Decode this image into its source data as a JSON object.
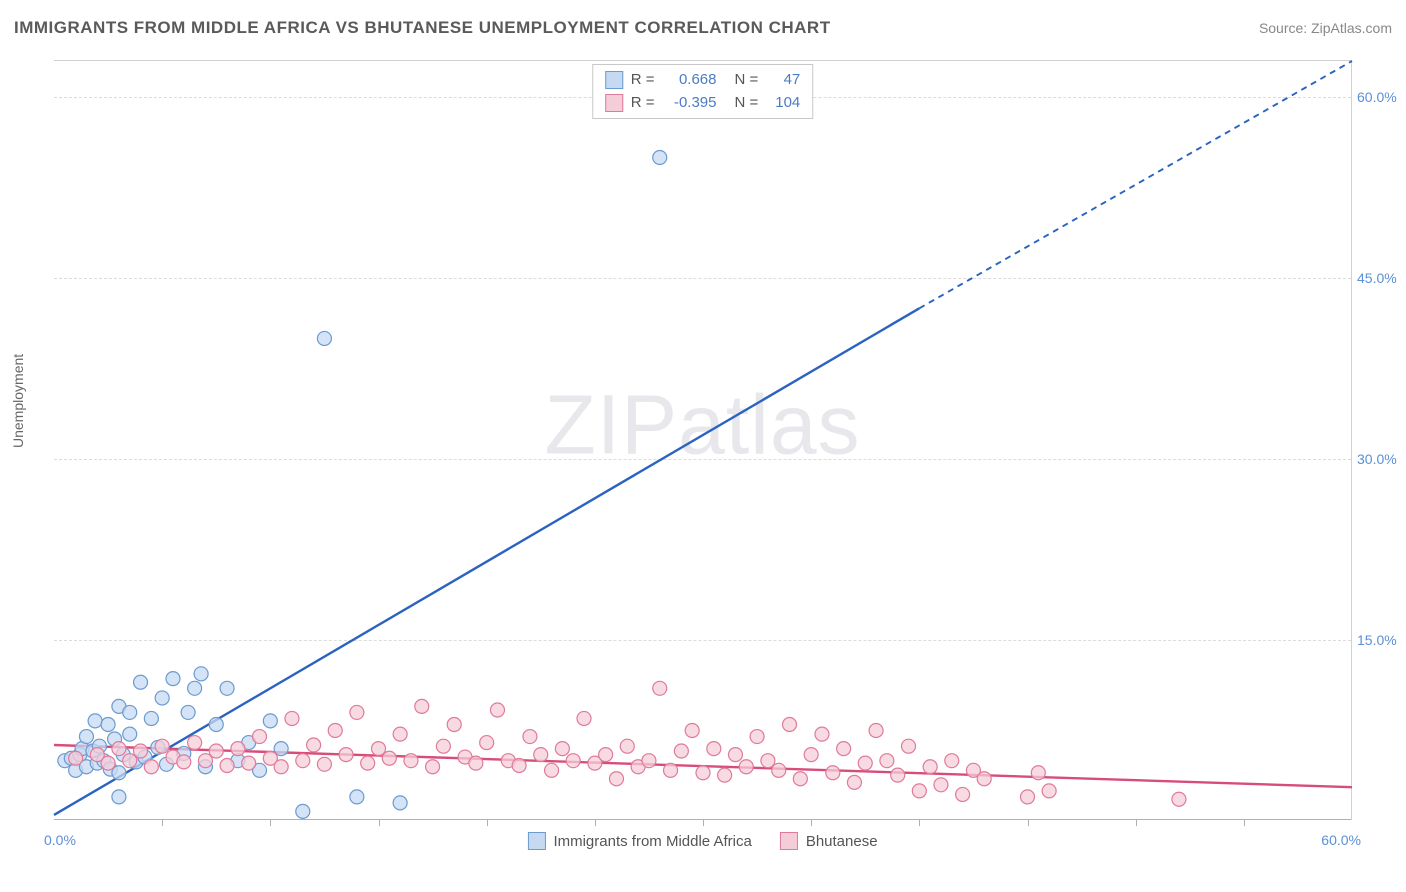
{
  "title": "IMMIGRANTS FROM MIDDLE AFRICA VS BHUTANESE UNEMPLOYMENT CORRELATION CHART",
  "source": "Source: ZipAtlas.com",
  "watermark": {
    "part1": "ZIP",
    "part2": "atlas"
  },
  "y_axis_title": "Unemployment",
  "chart": {
    "type": "scatter",
    "xlim": [
      0,
      60
    ],
    "ylim": [
      0,
      63
    ],
    "x_min_label": "0.0%",
    "x_max_label": "60.0%",
    "y_ticks": [
      15,
      30,
      45,
      60
    ],
    "y_tick_labels": [
      "15.0%",
      "30.0%",
      "45.0%",
      "60.0%"
    ],
    "x_tick_step": 5,
    "background": "#ffffff",
    "grid_color": "#dcdcdc",
    "marker_radius": 7,
    "marker_stroke_width": 1.2,
    "series": [
      {
        "name": "Immigrants from Middle Africa",
        "fill": "#c5d9f1",
        "stroke": "#6b9bd1",
        "trend_color": "#2b63c0",
        "trend_width": 2.4,
        "trend": {
          "x1": 0,
          "y1": 0.5,
          "x2": 40,
          "y2": 42.5,
          "dash_after_x": 40,
          "x2_ext": 60,
          "y2_ext": 63
        },
        "points": [
          [
            0.5,
            5.0
          ],
          [
            0.8,
            5.2
          ],
          [
            1.0,
            4.2
          ],
          [
            1.2,
            5.5
          ],
          [
            1.3,
            6.0
          ],
          [
            1.5,
            7.0
          ],
          [
            1.5,
            4.5
          ],
          [
            1.8,
            5.8
          ],
          [
            1.9,
            8.3
          ],
          [
            2.0,
            4.8
          ],
          [
            2.1,
            6.2
          ],
          [
            2.3,
            5.0
          ],
          [
            2.5,
            8.0
          ],
          [
            2.6,
            4.3
          ],
          [
            2.8,
            6.8
          ],
          [
            3.0,
            9.5
          ],
          [
            3.0,
            4.0
          ],
          [
            3.2,
            5.5
          ],
          [
            3.5,
            7.2
          ],
          [
            3.5,
            9.0
          ],
          [
            3.8,
            4.9
          ],
          [
            4.0,
            11.5
          ],
          [
            4.2,
            5.3
          ],
          [
            4.5,
            8.5
          ],
          [
            4.8,
            6.1
          ],
          [
            5.0,
            10.2
          ],
          [
            5.2,
            4.7
          ],
          [
            5.5,
            11.8
          ],
          [
            6.0,
            5.6
          ],
          [
            6.2,
            9.0
          ],
          [
            6.5,
            11.0
          ],
          [
            6.8,
            12.2
          ],
          [
            7.0,
            4.5
          ],
          [
            7.5,
            8.0
          ],
          [
            8.0,
            11.0
          ],
          [
            8.5,
            5.0
          ],
          [
            9.0,
            6.5
          ],
          [
            9.5,
            4.2
          ],
          [
            10.0,
            8.3
          ],
          [
            10.5,
            6.0
          ],
          [
            11.5,
            0.8
          ],
          [
            3.0,
            2.0
          ],
          [
            14.0,
            2.0
          ],
          [
            16.0,
            1.5
          ],
          [
            12.5,
            40.0
          ],
          [
            28.0,
            55.0
          ]
        ]
      },
      {
        "name": "Bhutanese",
        "fill": "#f5cdd9",
        "stroke": "#e07a9a",
        "trend_color": "#d84c7a",
        "trend_width": 2.4,
        "trend": {
          "x1": 0,
          "y1": 6.3,
          "x2": 60,
          "y2": 2.8
        },
        "points": [
          [
            1.0,
            5.2
          ],
          [
            2.0,
            5.5
          ],
          [
            2.5,
            4.8
          ],
          [
            3.0,
            6.0
          ],
          [
            3.5,
            5.0
          ],
          [
            4.0,
            5.8
          ],
          [
            4.5,
            4.5
          ],
          [
            5.0,
            6.2
          ],
          [
            5.5,
            5.3
          ],
          [
            6.0,
            4.9
          ],
          [
            6.5,
            6.5
          ],
          [
            7.0,
            5.0
          ],
          [
            7.5,
            5.8
          ],
          [
            8.0,
            4.6
          ],
          [
            8.5,
            6.0
          ],
          [
            9.0,
            4.8
          ],
          [
            9.5,
            7.0
          ],
          [
            10.0,
            5.2
          ],
          [
            10.5,
            4.5
          ],
          [
            11.0,
            8.5
          ],
          [
            11.5,
            5.0
          ],
          [
            12.0,
            6.3
          ],
          [
            12.5,
            4.7
          ],
          [
            13.0,
            7.5
          ],
          [
            13.5,
            5.5
          ],
          [
            14.0,
            9.0
          ],
          [
            14.5,
            4.8
          ],
          [
            15.0,
            6.0
          ],
          [
            15.5,
            5.2
          ],
          [
            16.0,
            7.2
          ],
          [
            16.5,
            5.0
          ],
          [
            17.0,
            9.5
          ],
          [
            17.5,
            4.5
          ],
          [
            18.0,
            6.2
          ],
          [
            18.5,
            8.0
          ],
          [
            19.0,
            5.3
          ],
          [
            19.5,
            4.8
          ],
          [
            20.0,
            6.5
          ],
          [
            20.5,
            9.2
          ],
          [
            21.0,
            5.0
          ],
          [
            21.5,
            4.6
          ],
          [
            22.0,
            7.0
          ],
          [
            22.5,
            5.5
          ],
          [
            23.0,
            4.2
          ],
          [
            23.5,
            6.0
          ],
          [
            24.0,
            5.0
          ],
          [
            24.5,
            8.5
          ],
          [
            25.0,
            4.8
          ],
          [
            25.5,
            5.5
          ],
          [
            26.0,
            3.5
          ],
          [
            26.5,
            6.2
          ],
          [
            27.0,
            4.5
          ],
          [
            27.5,
            5.0
          ],
          [
            28.0,
            11.0
          ],
          [
            28.5,
            4.2
          ],
          [
            29.0,
            5.8
          ],
          [
            29.5,
            7.5
          ],
          [
            30.0,
            4.0
          ],
          [
            30.5,
            6.0
          ],
          [
            31.0,
            3.8
          ],
          [
            31.5,
            5.5
          ],
          [
            32.0,
            4.5
          ],
          [
            32.5,
            7.0
          ],
          [
            33.0,
            5.0
          ],
          [
            33.5,
            4.2
          ],
          [
            34.0,
            8.0
          ],
          [
            34.5,
            3.5
          ],
          [
            35.0,
            5.5
          ],
          [
            35.5,
            7.2
          ],
          [
            36.0,
            4.0
          ],
          [
            36.5,
            6.0
          ],
          [
            37.0,
            3.2
          ],
          [
            37.5,
            4.8
          ],
          [
            38.0,
            7.5
          ],
          [
            38.5,
            5.0
          ],
          [
            39.0,
            3.8
          ],
          [
            39.5,
            6.2
          ],
          [
            40.0,
            2.5
          ],
          [
            40.5,
            4.5
          ],
          [
            41.0,
            3.0
          ],
          [
            41.5,
            5.0
          ],
          [
            42.0,
            2.2
          ],
          [
            42.5,
            4.2
          ],
          [
            43.0,
            3.5
          ],
          [
            45.0,
            2.0
          ],
          [
            45.5,
            4.0
          ],
          [
            46.0,
            2.5
          ],
          [
            52.0,
            1.8
          ]
        ]
      }
    ]
  },
  "stats": {
    "rows": [
      {
        "swatch_fill": "#c5d9f1",
        "swatch_stroke": "#6b9bd1",
        "r_label": "R =",
        "r_val": "0.668",
        "n_label": "N =",
        "n_val": "47"
      },
      {
        "swatch_fill": "#f5cdd9",
        "swatch_stroke": "#e07a9a",
        "r_label": "R =",
        "r_val": "-0.395",
        "n_label": "N =",
        "n_val": "104"
      }
    ]
  },
  "bottom_legend": [
    {
      "swatch_fill": "#c5d9f1",
      "swatch_stroke": "#6b9bd1",
      "label": "Immigrants from Middle Africa"
    },
    {
      "swatch_fill": "#f5cdd9",
      "swatch_stroke": "#e07a9a",
      "label": "Bhutanese"
    }
  ]
}
